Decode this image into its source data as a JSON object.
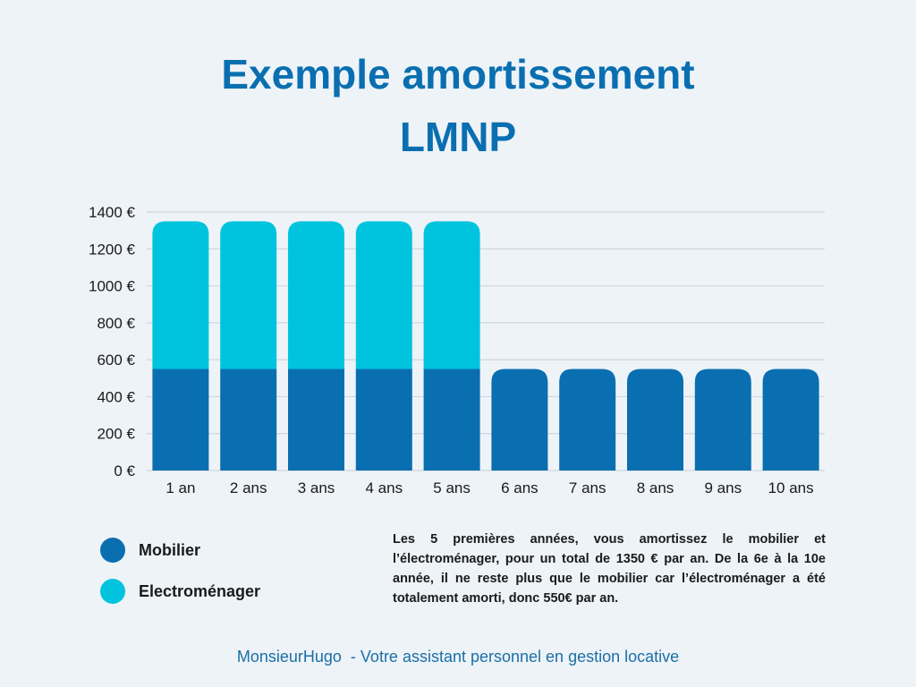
{
  "title": {
    "line1": "Exemple amortissement",
    "line2": "LMNP"
  },
  "colors": {
    "background": "#eef3f8",
    "title": "#0a6fb0",
    "mobilier": "#0a6fb0",
    "electromenager": "#00c4de",
    "grid": "#cfd6de",
    "footer": "#1a6fa6"
  },
  "chart_data": {
    "type": "bar",
    "stacked": true,
    "categories": [
      "1 an",
      "2 ans",
      "3 ans",
      "4 ans",
      "5 ans",
      "6 ans",
      "7 ans",
      "8 ans",
      "9 ans",
      "10 ans"
    ],
    "series": [
      {
        "name": "Mobilier",
        "color": "#0a6fb0",
        "values": [
          550,
          550,
          550,
          550,
          550,
          550,
          550,
          550,
          550,
          550
        ]
      },
      {
        "name": "Electroménager",
        "color": "#00c4de",
        "values": [
          800,
          800,
          800,
          800,
          800,
          0,
          0,
          0,
          0,
          0
        ]
      }
    ],
    "yticks": [
      0,
      200,
      400,
      600,
      800,
      1000,
      1200,
      1400
    ],
    "ytick_labels": [
      "0 €",
      "200 €",
      "400 €",
      "600 €",
      "800 €",
      "1000 €",
      "1200 €",
      "1400 €"
    ],
    "ylim": [
      0,
      1400
    ],
    "grid": true,
    "legend_position": "bottom-left"
  },
  "legend": {
    "items": [
      {
        "label": "Mobilier",
        "color": "#0a6fb0"
      },
      {
        "label": "Electroménager",
        "color": "#00c4de"
      }
    ]
  },
  "description": "Les 5 premières années, vous amortissez le mobilier et l’électroménager, pour un total de 1350 € par an. De la 6e à la 10e année, il ne reste plus que le mobilier car l’électroménager a été totalement amorti, donc 550€ par an.",
  "footer": "MonsieurHugo  - Votre assistant personnel en gestion locative"
}
